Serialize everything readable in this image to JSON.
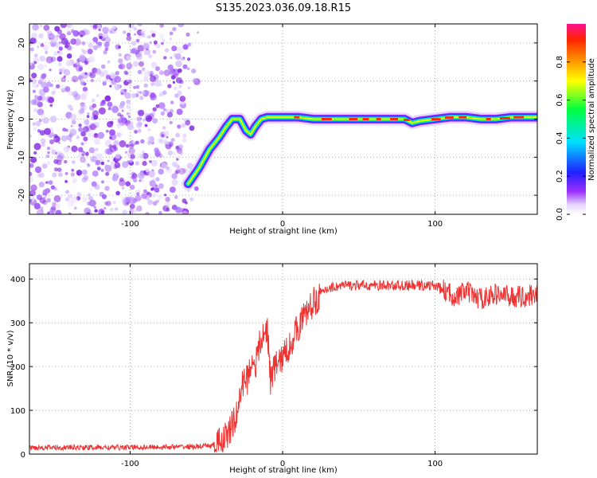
{
  "title": "S135.2023.036.09.18.R15",
  "chart_data": [
    {
      "type": "heatmap",
      "title": "S135.2023.036.09.18.R15",
      "xlabel": "Height of straight line (km)",
      "ylabel": "Frequency (Hz)",
      "xlim": [
        -166,
        167
      ],
      "ylim": [
        -25,
        25
      ],
      "xticks": [
        -100,
        0,
        100
      ],
      "yticks": [
        -20,
        -10,
        0,
        10,
        20
      ],
      "grid": true,
      "colorbar": {
        "label": "Normalized spectral amplitude",
        "range": [
          0,
          1
        ],
        "ticks": [
          0.0,
          0.2,
          0.4,
          0.6,
          0.8
        ],
        "tick_labels": [
          "0.0",
          "0.2",
          "0.4",
          "0.6",
          "0.8"
        ],
        "colormap": "rainbow (white-violet-blue-cyan-green-yellow-orange-red-magenta)"
      },
      "noise_region": {
        "x": [
          -166,
          -58
        ],
        "description": "scattered low-amplitude violet speckle"
      },
      "peak_trace": {
        "x": [
          -62,
          -55,
          -48,
          -42,
          -37,
          -33,
          -28,
          -24,
          -21,
          -18,
          -14,
          -10,
          -5,
          0,
          10,
          20,
          30,
          40,
          50,
          60,
          70,
          80,
          85,
          90,
          100,
          110,
          120,
          130,
          140,
          150,
          160,
          167
        ],
        "y": [
          -17,
          -13,
          -8,
          -5,
          -2,
          0,
          0,
          -3,
          -4,
          -2,
          0,
          0.5,
          0.5,
          0.5,
          0.5,
          0,
          0,
          0,
          0,
          0,
          0,
          0,
          -1,
          -0.5,
          0,
          0.5,
          0.5,
          0,
          0,
          0.5,
          0.5,
          0.5
        ]
      }
    },
    {
      "type": "line",
      "xlabel": "Height of straight line (km)",
      "ylabel": "SNR (10 * v/v)",
      "xlim": [
        -166,
        167
      ],
      "ylim": [
        0,
        435
      ],
      "xticks": [
        -100,
        0,
        100
      ],
      "yticks": [
        0,
        100,
        200,
        300,
        400
      ],
      "grid": true,
      "series": [
        {
          "color": "#ee3333",
          "x": [
            -166,
            -140,
            -110,
            -80,
            -55,
            -45,
            -40,
            -35,
            -30,
            -28,
            -25,
            -23,
            -20,
            -18,
            -15,
            -12,
            -10,
            -8,
            -5,
            0,
            5,
            10,
            15,
            20,
            25,
            30,
            40,
            50,
            60,
            70,
            80,
            90,
            100,
            105,
            110,
            115,
            120,
            125,
            130,
            140,
            150,
            160,
            167
          ],
          "y": [
            15,
            15,
            15,
            16,
            17,
            20,
            30,
            50,
            90,
            130,
            180,
            170,
            220,
            200,
            250,
            270,
            290,
            170,
            200,
            220,
            250,
            290,
            320,
            345,
            365,
            380,
            385,
            385,
            385,
            385,
            385,
            385,
            385,
            375,
            365,
            360,
            375,
            360,
            355,
            365,
            360,
            360,
            370
          ]
        }
      ]
    }
  ]
}
